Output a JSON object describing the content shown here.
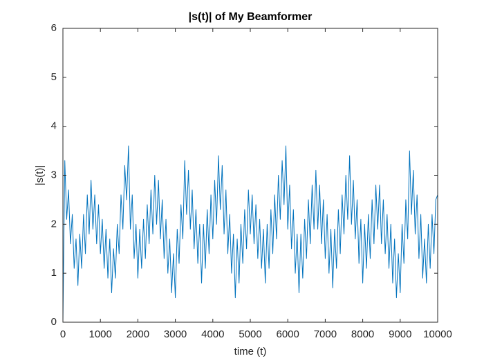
{
  "chart_data": {
    "type": "line",
    "title": "|s(t)| of My Beamformer",
    "x_label": "time (t)",
    "y_label": "|s(t)|",
    "xlim": [
      0,
      10000
    ],
    "ylim": [
      0,
      6
    ],
    "xticks": [
      0,
      1000,
      2000,
      3000,
      4000,
      5000,
      6000,
      7000,
      8000,
      9000,
      10000
    ],
    "yticks": [
      0,
      1,
      2,
      3,
      4,
      5,
      6
    ],
    "box": true,
    "x": [
      0,
      50,
      100,
      150,
      200,
      250,
      300,
      350,
      400,
      450,
      500,
      550,
      600,
      650,
      700,
      750,
      800,
      850,
      900,
      950,
      1000,
      1050,
      1100,
      1150,
      1200,
      1250,
      1300,
      1350,
      1400,
      1450,
      1500,
      1550,
      1600,
      1650,
      1700,
      1750,
      1800,
      1850,
      1900,
      1950,
      2000,
      2050,
      2100,
      2150,
      2200,
      2250,
      2300,
      2350,
      2400,
      2450,
      2500,
      2550,
      2600,
      2650,
      2700,
      2750,
      2800,
      2850,
      2900,
      2950,
      3000,
      3050,
      3100,
      3150,
      3200,
      3250,
      3300,
      3350,
      3400,
      3450,
      3500,
      3550,
      3600,
      3650,
      3700,
      3750,
      3800,
      3850,
      3900,
      3950,
      4000,
      4050,
      4100,
      4150,
      4200,
      4250,
      4300,
      4350,
      4400,
      4450,
      4500,
      4550,
      4600,
      4650,
      4700,
      4750,
      4800,
      4850,
      4900,
      4950,
      5000,
      5050,
      5100,
      5150,
      5200,
      5250,
      5300,
      5350,
      5400,
      5450,
      5500,
      5550,
      5600,
      5650,
      5700,
      5750,
      5800,
      5850,
      5900,
      5950,
      6000,
      6050,
      6100,
      6150,
      6200,
      6250,
      6300,
      6350,
      6400,
      6450,
      6500,
      6550,
      6600,
      6650,
      6700,
      6750,
      6800,
      6850,
      6900,
      6950,
      7000,
      7050,
      7100,
      7150,
      7200,
      7250,
      7300,
      7350,
      7400,
      7450,
      7500,
      7550,
      7600,
      7650,
      7700,
      7750,
      7800,
      7850,
      7900,
      7950,
      8000,
      8050,
      8100,
      8150,
      8200,
      8250,
      8300,
      8350,
      8400,
      8450,
      8500,
      8550,
      8600,
      8650,
      8700,
      8750,
      8800,
      8850,
      8900,
      8950,
      9000,
      9050,
      9100,
      9150,
      9200,
      9250,
      9300,
      9350,
      9400,
      9450,
      9500,
      9550,
      9600,
      9650,
      9700,
      9750,
      9800,
      9850,
      9900,
      9950,
      10000
    ],
    "series": [
      {
        "color": "#0072bd",
        "values": [
          0,
          3.3,
          2.1,
          2.7,
          1.6,
          2.2,
          1.1,
          1.7,
          0.75,
          1.8,
          1.1,
          2.2,
          1.4,
          2.6,
          1.8,
          2.9,
          1.9,
          2.6,
          1.6,
          2.4,
          1.4,
          2.1,
          1.1,
          1.9,
          0.9,
          1.7,
          0.6,
          1.5,
          0.9,
          2.0,
          1.4,
          2.6,
          1.9,
          3.2,
          2.5,
          3.6,
          1.9,
          2.6,
          1.3,
          2.0,
          0.9,
          1.9,
          1.1,
          2.1,
          1.3,
          2.4,
          1.6,
          2.7,
          1.8,
          3.0,
          2.0,
          2.9,
          1.7,
          2.5,
          1.3,
          2.1,
          1.0,
          1.7,
          0.6,
          1.4,
          0.5,
          1.9,
          1.2,
          2.4,
          1.7,
          3.3,
          2.2,
          3.1,
          1.9,
          2.7,
          1.5,
          2.3,
          1.2,
          2.0,
          0.8,
          2.0,
          1.1,
          2.3,
          1.4,
          2.6,
          1.7,
          2.9,
          2.0,
          3.4,
          2.3,
          3.2,
          1.8,
          2.7,
          1.4,
          2.2,
          1.0,
          1.8,
          0.5,
          1.7,
          0.8,
          2.0,
          1.2,
          2.3,
          1.5,
          2.7,
          1.8,
          2.6,
          1.6,
          2.4,
          1.3,
          2.1,
          1.1,
          1.9,
          0.8,
          2.0,
          1.1,
          2.3,
          1.4,
          2.6,
          1.7,
          3.0,
          2.1,
          3.3,
          2.4,
          3.6,
          1.9,
          2.8,
          1.5,
          2.3,
          1.0,
          1.8,
          0.6,
          1.8,
          0.9,
          2.1,
          1.3,
          2.5,
          1.6,
          2.8,
          1.9,
          3.1,
          1.9,
          2.8,
          1.6,
          2.5,
          1.3,
          2.2,
          1.0,
          1.9,
          0.7,
          1.9,
          1.1,
          2.3,
          1.4,
          2.6,
          1.8,
          3.0,
          2.1,
          3.4,
          2.0,
          2.9,
          1.7,
          2.5,
          1.2,
          2.1,
          0.8,
          2.0,
          1.1,
          2.2,
          1.3,
          2.5,
          1.6,
          2.8,
          1.9,
          2.8,
          1.6,
          2.5,
          1.4,
          2.2,
          1.1,
          2.0,
          0.8,
          1.7,
          0.5,
          1.4,
          0.6,
          2.0,
          1.2,
          2.5,
          1.7,
          3.5,
          2.2,
          3.1,
          1.8,
          2.6,
          1.3,
          2.2,
          0.9,
          1.7,
          0.8,
          2.0,
          1.1,
          2.2,
          1.4,
          2.5,
          2.6
        ]
      }
    ]
  }
}
